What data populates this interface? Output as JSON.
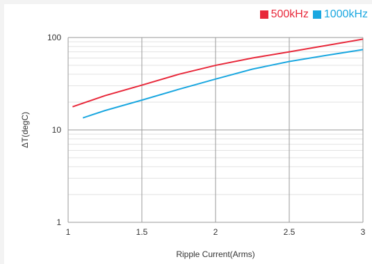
{
  "chart_data": {
    "type": "line",
    "xlabel": "Ripple Current(Arms)",
    "ylabel": "ΔT(degC)",
    "xlim": [
      1,
      3
    ],
    "ylim": [
      1,
      100
    ],
    "y_scale": "log",
    "grid": true,
    "legend_position": "top-right",
    "x_ticks": [
      1,
      1.5,
      2,
      2.5,
      3
    ],
    "x_tick_labels": [
      "1",
      "1.5",
      "2",
      "2.5",
      "3"
    ],
    "y_ticks": [
      1,
      10,
      100
    ],
    "y_tick_labels": [
      "1",
      "10",
      "100"
    ],
    "series": [
      {
        "name": "500kHz",
        "color": "#e8283a",
        "x": [
          1.03,
          1.25,
          1.5,
          1.75,
          2.0,
          2.25,
          2.5,
          2.75,
          3.0
        ],
        "y": [
          17.8,
          23.5,
          30.5,
          40.0,
          50.0,
          60.0,
          70.0,
          82.0,
          96.0
        ]
      },
      {
        "name": "1000kHz",
        "color": "#1aa7e0",
        "x": [
          1.1,
          1.25,
          1.5,
          1.75,
          2.0,
          2.25,
          2.5,
          2.75,
          3.0
        ],
        "y": [
          13.5,
          16.2,
          21.0,
          27.5,
          35.5,
          45.5,
          55.0,
          64.0,
          74.0
        ]
      }
    ]
  }
}
